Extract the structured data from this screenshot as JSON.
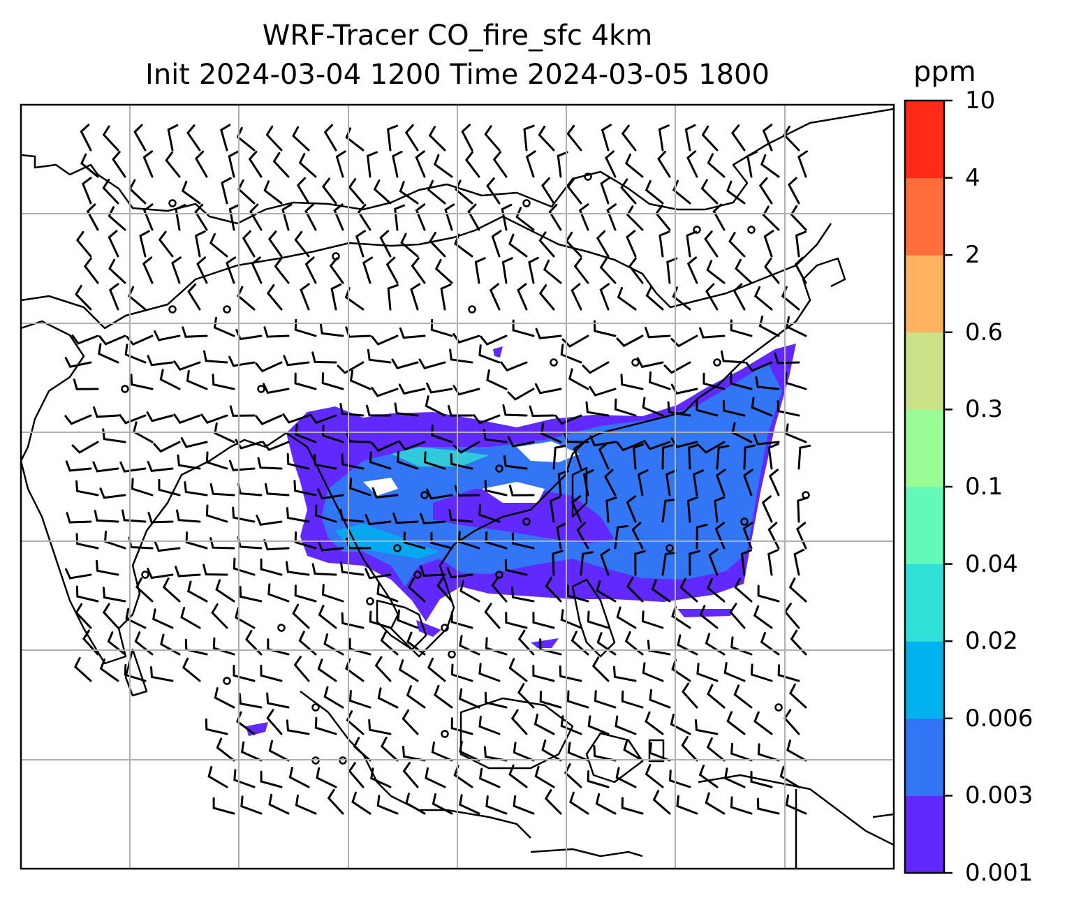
{
  "title": {
    "line1": "WRF-Tracer CO_fire_sfc 4km",
    "line2": "Init 2024-03-04 1200 Time 2024-03-05 1800"
  },
  "colorbar": {
    "unit": "ppm",
    "levels": [
      "0.001",
      "0.003",
      "0.006",
      "0.02",
      "0.04",
      "0.1",
      "0.3",
      "0.6",
      "2",
      "4",
      "10"
    ],
    "colors": [
      "#6229ff",
      "#3275f5",
      "#00b2ee",
      "#2fe0d6",
      "#63f9b8",
      "#99fc94",
      "#cbe289",
      "#ffb361",
      "#ff6d3b",
      "#ff2a17"
    ]
  },
  "map": {
    "field": "CO_fire_sfc",
    "background": "#ffffff",
    "gridline_color": "#b0b0b0",
    "coastline_color": "#000000",
    "wind_barbs": true
  }
}
